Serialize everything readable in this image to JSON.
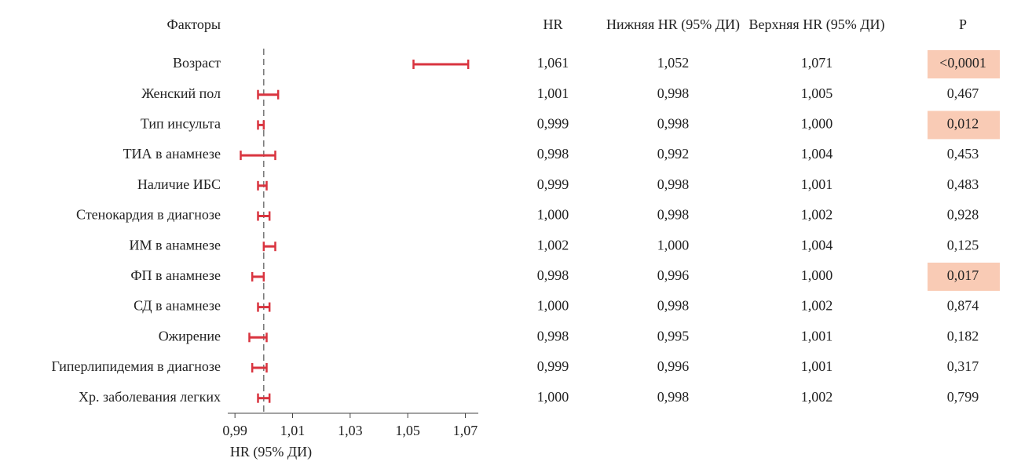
{
  "chart_data": {
    "type": "forest",
    "category_header": "Факторы",
    "categories": [
      "Возраст",
      "Женский пол",
      "Тип инсульта",
      "ТИА в анамнезе",
      "Наличие ИБС",
      "Стенокардия в диагнозе",
      "ИМ в анамнезе",
      "ФП в анамнезе",
      "СД в анамнезе",
      "Ожирение",
      "Гиперлипидемия в диагнозе",
      "Хр. заболевания легких"
    ],
    "series": [
      {
        "name": "HR",
        "values": [
          1.061,
          1.001,
          0.999,
          0.998,
          0.999,
          1.0,
          1.002,
          0.998,
          1.0,
          0.998,
          0.999,
          1.0
        ],
        "value_labels": [
          "1,061",
          "1,001",
          "0,999",
          "0,998",
          "0,999",
          "1,000",
          "1,002",
          "0,998",
          "1,000",
          "0,998",
          "0,999",
          "1,000"
        ]
      },
      {
        "name": "Нижняя HR (95% ДИ)",
        "values": [
          1.052,
          0.998,
          0.998,
          0.992,
          0.998,
          0.998,
          1.0,
          0.996,
          0.998,
          0.995,
          0.996,
          0.998
        ],
        "value_labels": [
          "1,052",
          "0,998",
          "0,998",
          "0,992",
          "0,998",
          "0,998",
          "1,000",
          "0,996",
          "0,998",
          "0,995",
          "0,996",
          "0,998"
        ]
      },
      {
        "name": "Верхняя HR (95% ДИ)",
        "values": [
          1.071,
          1.005,
          1.0,
          1.004,
          1.001,
          1.002,
          1.004,
          1.0,
          1.002,
          1.001,
          1.001,
          1.002
        ],
        "value_labels": [
          "1,071",
          "1,005",
          "1,000",
          "1,004",
          "1,001",
          "1,002",
          "1,004",
          "1,000",
          "1,002",
          "1,001",
          "1,001",
          "1,002"
        ]
      }
    ],
    "p_header": "P",
    "p_labels": [
      "<0,0001",
      "0,467",
      "0,012",
      "0,453",
      "0,483",
      "0,928",
      "0,125",
      "0,017",
      "0,874",
      "0,182",
      "0,317",
      "0,799"
    ],
    "p_highlight": [
      true,
      false,
      true,
      false,
      false,
      false,
      false,
      true,
      false,
      false,
      false,
      false
    ],
    "highlight_color": "#f9cbb5",
    "ci_color": "#d9343f",
    "reference": 1,
    "xlabel": "HR (95% ДИ)",
    "xlim": [
      0.9875,
      1.0745
    ],
    "xticks": [
      {
        "value": 0.99,
        "label": "0,99"
      },
      {
        "value": 1.01,
        "label": "1,01"
      },
      {
        "value": 1.03,
        "label": "1,03"
      },
      {
        "value": 1.05,
        "label": "1,05"
      },
      {
        "value": 1.07,
        "label": "1,07"
      }
    ]
  }
}
